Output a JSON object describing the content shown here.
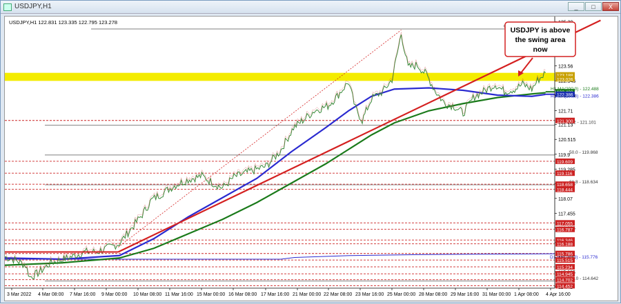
{
  "window": {
    "title": "USDJPY,H1",
    "btn_min": "_",
    "btn_max": "□",
    "btn_close": "X"
  },
  "chart_data": {
    "type": "line",
    "symbol_header": "USDJPY,H1  122.831 123.335 122.795 123.278",
    "x_ticks": [
      "3 Mar 2022",
      "4 Mar 08:00",
      "7 Mar 16:00",
      "9 Mar 00:00",
      "10 Mar 08:00",
      "11 Mar 16:00",
      "15 Mar 00:00",
      "16 Mar 08:00",
      "17 Mar 16:00",
      "21 Mar 00:00",
      "22 Mar 08:00",
      "23 Mar 16:00",
      "25 Mar 00:00",
      "28 Mar 08:00",
      "29 Mar 16:00",
      "31 Mar 00:00",
      "1 Apr 08:00",
      "4 Apr 16:00"
    ],
    "y_ticks": [
      125.39,
      124.775,
      124.175,
      123.56,
      122.945,
      122.345,
      121.71,
      121.13,
      120.515,
      119.9,
      119.285,
      118.685,
      118.07,
      117.455,
      116.855,
      116.24,
      115.625,
      115.025,
      114.41
    ],
    "ylim": [
      114.35,
      125.55
    ],
    "price_path": [
      [
        0,
        115.65
      ],
      [
        10,
        115.5
      ],
      [
        18,
        115.3
      ],
      [
        22,
        114.8
      ],
      [
        30,
        115.0
      ],
      [
        40,
        115.4
      ],
      [
        55,
        115.6
      ],
      [
        70,
        115.85
      ],
      [
        80,
        115.85
      ],
      [
        92,
        116.05
      ],
      [
        100,
        116.2
      ],
      [
        110,
        116.8
      ],
      [
        120,
        117.4
      ],
      [
        128,
        118.0
      ],
      [
        138,
        118.3
      ],
      [
        148,
        118.6
      ],
      [
        160,
        118.85
      ],
      [
        172,
        119.0
      ],
      [
        182,
        118.7
      ],
      [
        190,
        118.5
      ],
      [
        200,
        118.95
      ],
      [
        215,
        119.2
      ],
      [
        228,
        119.4
      ],
      [
        240,
        120.0
      ],
      [
        252,
        121.0
      ],
      [
        260,
        121.3
      ],
      [
        270,
        121.7
      ],
      [
        282,
        121.9
      ],
      [
        290,
        122.3
      ],
      [
        300,
        122.9
      ],
      [
        306,
        121.8
      ],
      [
        312,
        121.3
      ],
      [
        320,
        122.2
      ],
      [
        330,
        122.5
      ],
      [
        338,
        123.0
      ],
      [
        346,
        124.9
      ],
      [
        352,
        123.5
      ],
      [
        360,
        123.6
      ],
      [
        368,
        123.2
      ],
      [
        376,
        122.5
      ],
      [
        384,
        122.0
      ],
      [
        392,
        121.9
      ],
      [
        400,
        121.6
      ],
      [
        410,
        122.3
      ],
      [
        418,
        122.5
      ],
      [
        428,
        122.8
      ],
      [
        436,
        122.5
      ],
      [
        445,
        122.6
      ],
      [
        452,
        122.8
      ],
      [
        460,
        122.6
      ],
      [
        465,
        122.95
      ],
      [
        472,
        123.28
      ]
    ],
    "ma100": [
      [
        0,
        115.6
      ],
      [
        50,
        115.55
      ],
      [
        100,
        115.7
      ],
      [
        130,
        116.4
      ],
      [
        160,
        117.3
      ],
      [
        190,
        118.1
      ],
      [
        220,
        118.9
      ],
      [
        250,
        120.0
      ],
      [
        280,
        121.0
      ],
      [
        300,
        121.7
      ],
      [
        320,
        122.3
      ],
      [
        340,
        122.6
      ],
      [
        370,
        122.65
      ],
      [
        400,
        122.55
      ],
      [
        430,
        122.35
      ],
      [
        460,
        122.3
      ],
      [
        472,
        122.38
      ]
    ],
    "ma200": [
      [
        0,
        115.3
      ],
      [
        50,
        115.4
      ],
      [
        100,
        115.6
      ],
      [
        130,
        116.0
      ],
      [
        160,
        116.6
      ],
      [
        190,
        117.2
      ],
      [
        220,
        117.9
      ],
      [
        250,
        118.7
      ],
      [
        280,
        119.5
      ],
      [
        300,
        120.1
      ],
      [
        320,
        120.7
      ],
      [
        340,
        121.2
      ],
      [
        370,
        121.7
      ],
      [
        400,
        122.0
      ],
      [
        430,
        122.25
      ],
      [
        460,
        122.4
      ],
      [
        472,
        122.45
      ]
    ],
    "trendline": [
      [
        99,
        115.85
      ],
      [
        520,
        125.45
      ]
    ],
    "swing_area": [
      123.026,
      123.188
    ],
    "lines": {
      "fib0": {
        "label": "0.0 - 125.093",
        "value": 125.093
      },
      "fib382": {
        "label": "38.2 - 121.101",
        "value": 121.101
      },
      "fib50": {
        "label": "50.0 - 119.868",
        "value": 119.868
      },
      "fib618": {
        "label": "61.8 - 118.634",
        "value": 118.634
      },
      "fib100": {
        "label": "100.0 - 114.642",
        "value": 114.642
      },
      "ma200_label": "H1 MA(200;0) - 122.488",
      "ma100_label": "H1 MA(100;0) - 122.386",
      "d1_ma_label": "D1 MA(100;0) - 115.776"
    },
    "right_labels": [
      {
        "value": 123.188,
        "text": "123.188",
        "color": "#c8a000"
      },
      {
        "value": 123.026,
        "text": "123.026",
        "color": "#c8a000"
      },
      {
        "value": 122.488,
        "text": "122.488",
        "color": "#1a7a1a"
      },
      {
        "value": 122.386,
        "text": "122.386",
        "color": "#1a2fb0"
      },
      {
        "value": 121.3,
        "text": "121.300",
        "color": "#c22"
      },
      {
        "value": 119.609,
        "text": "119.609",
        "color": "#c22"
      },
      {
        "value": 119.116,
        "text": "119.116",
        "color": "#c22"
      },
      {
        "value": 118.658,
        "text": "118.658",
        "color": "#c22"
      },
      {
        "value": 118.444,
        "text": "118.444",
        "color": "#c22"
      },
      {
        "value": 117.055,
        "text": "117.055",
        "color": "#c22"
      },
      {
        "value": 116.787,
        "text": "116.787",
        "color": "#c22"
      },
      {
        "value": 116.346,
        "text": "116.346",
        "color": "#c22"
      },
      {
        "value": 116.188,
        "text": "116.188",
        "color": "#c22"
      },
      {
        "value": 115.786,
        "text": "115.786",
        "color": "#c22"
      },
      {
        "value": 115.515,
        "text": "115.515",
        "color": "#c22"
      },
      {
        "value": 115.234,
        "text": "115.234",
        "color": "#c22"
      },
      {
        "value": 114.945,
        "text": "114.945",
        "color": "#c22"
      },
      {
        "value": 114.702,
        "text": "114.702",
        "color": "#c22"
      },
      {
        "value": 114.452,
        "text": "114.452",
        "color": "#c22"
      }
    ],
    "dashed_levels": [
      121.3,
      119.609,
      119.116,
      118.658,
      118.444,
      117.055,
      116.787,
      116.346,
      116.188,
      115.786,
      115.515,
      115.234,
      114.945,
      114.702,
      114.452
    ],
    "annotation": {
      "line1": "USDJPY is above",
      "line2": "the swing area",
      "line3": "now"
    },
    "colors": {
      "price": "#3a8a3a",
      "ma100": "#2a2ad0",
      "ma200": "#1a7a1a",
      "trend": "#d42020",
      "swing": "#f4ec00",
      "levels": "#c22"
    }
  }
}
